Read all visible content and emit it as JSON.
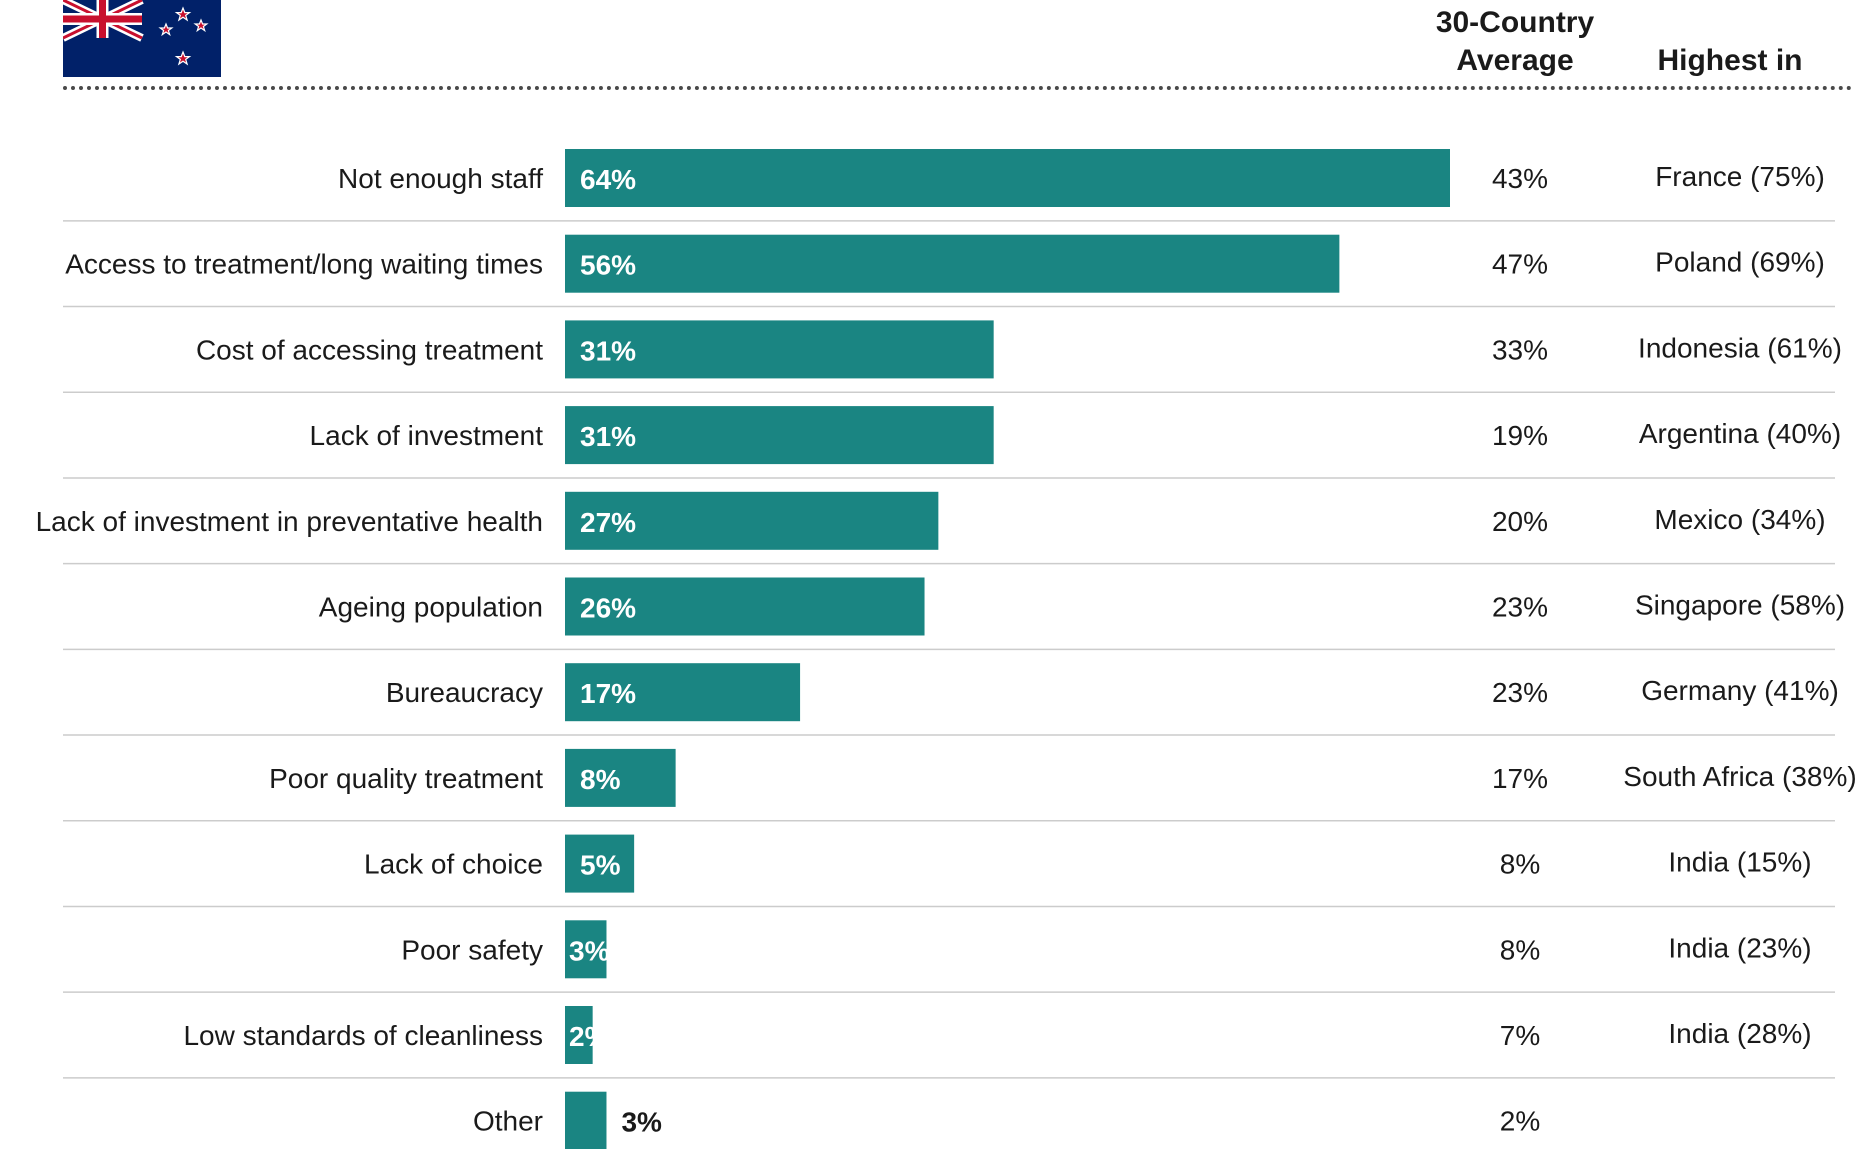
{
  "header": {
    "avg_label": "30-Country Average",
    "highest_label": "Highest in",
    "flag_icon": "new-zealand-flag-icon"
  },
  "colors": {
    "bar": "#1a8582",
    "bar_label_inside": "#ffffff",
    "bar_label_outside": "#1a1a1a",
    "row_divider": "#cccccc",
    "flag_blue": "#012169",
    "flag_red": "#c8102e"
  },
  "chart_data": {
    "type": "bar",
    "orientation": "horizontal",
    "categories": [
      "Not enough staff",
      "Access to treatment/long waiting times",
      "Cost of accessing treatment",
      "Lack of investment",
      "Lack of investment in preventative health",
      "Ageing population",
      "Bureaucracy",
      "Poor quality treatment",
      "Lack of choice",
      "Poor safety",
      "Low standards of cleanliness",
      "Other"
    ],
    "values": [
      64,
      56,
      31,
      31,
      27,
      26,
      17,
      8,
      5,
      3,
      2,
      3
    ],
    "value_labels": [
      "64%",
      "56%",
      "31%",
      "31%",
      "27%",
      "26%",
      "17%",
      "8%",
      "5%",
      "3%",
      "2%",
      "3%"
    ],
    "average_labels": [
      "43%",
      "47%",
      "33%",
      "19%",
      "20%",
      "23%",
      "23%",
      "17%",
      "8%",
      "8%",
      "7%",
      "2%"
    ],
    "highest_labels": [
      "France (75%)",
      "Poland (69%)",
      "Indonesia (61%)",
      "Argentina (40%)",
      "Mexico (34%)",
      "Singapore (58%)",
      "Germany (41%)",
      "South Africa (38%)",
      "India (15%)",
      "India (23%)",
      "India (28%)",
      ""
    ],
    "grid": false,
    "legend": "none"
  }
}
